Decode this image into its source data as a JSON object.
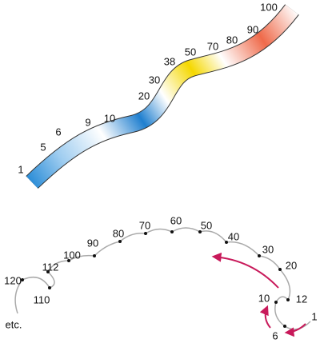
{
  "ribbon": {
    "labels": [
      "1",
      "5",
      "6",
      "9",
      "10",
      "20",
      "30",
      "38",
      "50",
      "70",
      "80",
      "90",
      "100"
    ]
  },
  "spiral": {
    "labels": [
      "1",
      "6",
      "10",
      "12",
      "20",
      "30",
      "40",
      "50",
      "60",
      "70",
      "80",
      "90",
      "100",
      "112",
      "110",
      "120"
    ],
    "etc": "etc."
  }
}
